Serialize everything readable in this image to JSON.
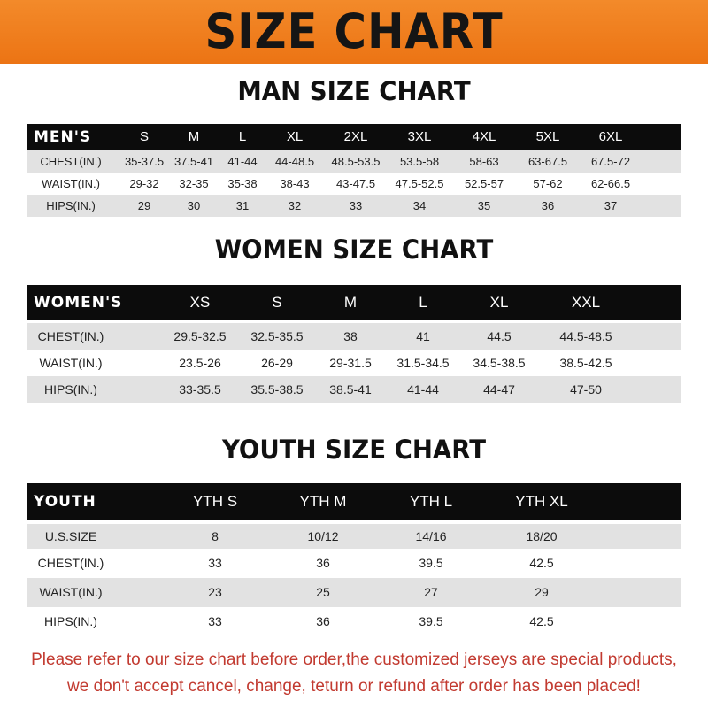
{
  "title": "SIZE CHART",
  "sections": [
    {
      "title": "MAN SIZE CHART",
      "header": [
        "MEN'S",
        "S",
        "M",
        "L",
        "XL",
        "2XL",
        "3XL",
        "4XL",
        "5XL",
        "6XL"
      ],
      "rows": [
        [
          "CHEST(IN.)",
          "35-37.5",
          "37.5-41",
          "41-44",
          "44-48.5",
          "48.5-53.5",
          "53.5-58",
          "58-63",
          "63-67.5",
          "67.5-72"
        ],
        [
          "WAIST(IN.)",
          "29-32",
          "32-35",
          "35-38",
          "38-43",
          "43-47.5",
          "47.5-52.5",
          "52.5-57",
          "57-62",
          "62-66.5"
        ],
        [
          "HIPS(IN.)",
          "29",
          "30",
          "31",
          "32",
          "33",
          "34",
          "35",
          "36",
          "37"
        ]
      ]
    },
    {
      "title": "WOMEN SIZE CHART",
      "header": [
        "WOMEN'S",
        "XS",
        "S",
        "M",
        "L",
        "XL",
        "XXL"
      ],
      "rows": [
        [
          "CHEST(IN.)",
          "29.5-32.5",
          "32.5-35.5",
          "38",
          "41",
          "44.5",
          "44.5-48.5"
        ],
        [
          "WAIST(IN.)",
          "23.5-26",
          "26-29",
          "29-31.5",
          "31.5-34.5",
          "34.5-38.5",
          "38.5-42.5"
        ],
        [
          "HIPS(IN.)",
          "33-35.5",
          "35.5-38.5",
          "38.5-41",
          "41-44",
          "44-47",
          "47-50"
        ]
      ]
    },
    {
      "title": "YOUTH SIZE CHART",
      "header": [
        "YOUTH",
        "YTH S",
        "YTH M",
        "YTH L",
        "YTH XL"
      ],
      "rows": [
        [
          "U.S.SIZE",
          "8",
          "10/12",
          "14/16",
          "18/20"
        ],
        [
          "CHEST(IN.)",
          "33",
          "36",
          "39.5",
          "42.5"
        ],
        [
          "WAIST(IN.)",
          "23",
          "25",
          "27",
          "29"
        ],
        [
          "HIPS(IN.)",
          "33",
          "36",
          "39.5",
          "42.5"
        ]
      ]
    }
  ],
  "note": [
    "Please refer to our size chart before order,the customized jerseys are special products,",
    "we don't accept cancel, change, teturn or refund after order has been placed!"
  ],
  "colors": {
    "banner": "#ec7414",
    "header_row": "#0c0c0c",
    "stripe": "#e2e2e2",
    "note": "#c23a30"
  }
}
